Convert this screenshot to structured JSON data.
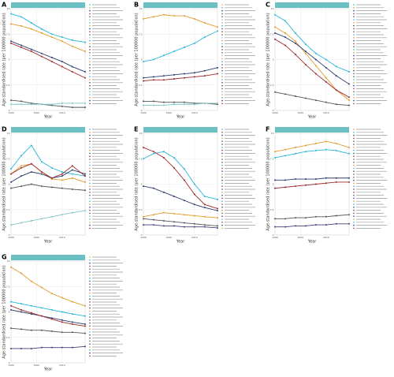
{
  "chart_data": [
    {
      "type": "line",
      "label": "A",
      "x_label": "Year",
      "y_label": "Age-standardised rate (per 100000 population)",
      "x": [
        1990,
        1994,
        1998,
        2002,
        2006,
        2010,
        2014,
        2019
      ],
      "xlim": [
        1990,
        2019
      ],
      "xticks": [
        1990,
        2000,
        2010
      ],
      "ylim": [
        0,
        10
      ],
      "yticks": [
        0,
        2.5,
        5,
        7.5,
        10
      ],
      "grid": true,
      "series": [
        {
          "color": "#29b6d8",
          "values": [
            9.5,
            9.2,
            8.6,
            8.0,
            7.5,
            7.2,
            6.9,
            6.7
          ]
        },
        {
          "color": "#e39b2e",
          "values": [
            8.5,
            8.3,
            8.0,
            7.6,
            7.2,
            6.8,
            6.3,
            5.8
          ]
        },
        {
          "color": "#2c3e6e",
          "values": [
            6.8,
            6.4,
            6.0,
            5.6,
            5.2,
            4.8,
            4.3,
            3.8
          ]
        },
        {
          "color": "#9c2b2b",
          "values": [
            6.6,
            6.2,
            5.8,
            5.3,
            4.8,
            4.3,
            3.8,
            3.2
          ]
        },
        {
          "color": "#555555",
          "values": [
            1.0,
            0.9,
            0.7,
            0.6,
            0.5,
            0.4,
            0.3,
            0.3
          ]
        },
        {
          "color": "#7fc6c6",
          "values": [
            0.6,
            0.6,
            0.6,
            0.6,
            0.6,
            0.7,
            0.7,
            0.7
          ]
        }
      ]
    },
    {
      "type": "line",
      "label": "B",
      "x_label": "Year",
      "y_label": "Age-standardised rate (per 100000 population)",
      "x": [
        1990,
        1994,
        1998,
        2002,
        2006,
        2010,
        2014,
        2019
      ],
      "xlim": [
        1990,
        2019
      ],
      "xticks": [
        1990,
        2000,
        2010
      ],
      "ylim": [
        0,
        10
      ],
      "yticks": [
        0,
        2.5,
        5,
        7.5,
        10
      ],
      "grid": true,
      "series": [
        {
          "color": "#e39b2e",
          "values": [
            9.0,
            9.2,
            9.4,
            9.3,
            9.3,
            9.0,
            8.6,
            8.2
          ]
        },
        {
          "color": "#29b6d8",
          "values": [
            4.8,
            5.0,
            5.4,
            5.8,
            6.2,
            6.6,
            7.2,
            7.8
          ]
        },
        {
          "color": "#2c3e6e",
          "values": [
            3.2,
            3.3,
            3.4,
            3.5,
            3.6,
            3.7,
            3.9,
            4.2
          ]
        },
        {
          "color": "#9c2b2b",
          "values": [
            2.9,
            3.0,
            3.0,
            3.1,
            3.2,
            3.3,
            3.4,
            3.6
          ]
        },
        {
          "color": "#555555",
          "values": [
            0.9,
            0.9,
            0.8,
            0.8,
            0.8,
            0.7,
            0.7,
            0.6
          ]
        },
        {
          "color": "#7fc6c6",
          "values": [
            0.5,
            0.5,
            0.5,
            0.6,
            0.6,
            0.6,
            0.7,
            0.7
          ]
        }
      ]
    },
    {
      "type": "line",
      "label": "C",
      "x_label": "Year",
      "y_label": "Age-standardised rate (per 100000 population)",
      "x": [
        1990,
        1994,
        1998,
        2002,
        2006,
        2010,
        2014,
        2019
      ],
      "xlim": [
        1990,
        2019
      ],
      "xticks": [
        1990,
        2000,
        2010
      ],
      "ylim": [
        0,
        10
      ],
      "yticks": [
        0,
        2.5,
        5,
        7.5,
        10
      ],
      "grid": true,
      "series": [
        {
          "color": "#29b6d8",
          "values": [
            9.4,
            8.8,
            7.6,
            6.5,
            5.6,
            5.0,
            4.3,
            3.8
          ]
        },
        {
          "color": "#e39b2e",
          "values": [
            8.2,
            7.6,
            6.8,
            5.6,
            4.4,
            3.2,
            2.0,
            1.0
          ]
        },
        {
          "color": "#2c3e6e",
          "values": [
            7.6,
            7.2,
            6.6,
            5.8,
            5.0,
            4.2,
            3.4,
            2.6
          ]
        },
        {
          "color": "#9c2b2b",
          "values": [
            7.0,
            6.4,
            5.5,
            4.5,
            3.6,
            2.8,
            2.0,
            1.3
          ]
        },
        {
          "color": "#555555",
          "values": [
            1.8,
            1.6,
            1.4,
            1.2,
            1.0,
            0.8,
            0.6,
            0.5
          ]
        }
      ]
    },
    {
      "type": "line",
      "label": "D",
      "x_label": "Year",
      "y_label": "Age-standardised rate (per 100000 population)",
      "x": [
        1990,
        1994,
        1998,
        2002,
        2006,
        2010,
        2014,
        2019
      ],
      "xlim": [
        1990,
        2019
      ],
      "xticks": [
        1990,
        2000,
        2010
      ],
      "ylim": [
        0,
        10
      ],
      "yticks": [
        0,
        2.5,
        5,
        7.5,
        10
      ],
      "grid": true,
      "series": [
        {
          "color": "#29b6d8",
          "values": [
            6.5,
            7.8,
            8.8,
            7.2,
            6.6,
            6.2,
            6.0,
            5.8
          ]
        },
        {
          "color": "#e39b2e",
          "values": [
            6.0,
            6.8,
            7.0,
            6.2,
            5.5,
            5.4,
            5.6,
            5.2
          ]
        },
        {
          "color": "#2c3e6e",
          "values": [
            5.2,
            5.8,
            6.2,
            6.0,
            5.6,
            5.8,
            6.4,
            6.0
          ]
        },
        {
          "color": "#9c2b2b",
          "values": [
            6.0,
            6.6,
            7.0,
            6.2,
            5.6,
            6.0,
            6.8,
            5.8
          ]
        },
        {
          "color": "#555555",
          "values": [
            4.6,
            4.8,
            5.0,
            4.8,
            4.7,
            4.6,
            4.5,
            4.4
          ]
        },
        {
          "color": "#7fc6c6",
          "values": [
            1.0,
            1.2,
            1.4,
            1.6,
            1.8,
            2.0,
            2.2,
            2.4
          ]
        }
      ]
    },
    {
      "type": "line",
      "label": "E",
      "x_label": "Year",
      "y_label": "Age-standardised rate (per 100000 population)",
      "x": [
        1990,
        1994,
        1998,
        2002,
        2006,
        2010,
        2014,
        2019
      ],
      "xlim": [
        1990,
        2019
      ],
      "xticks": [
        1990,
        2000,
        2010
      ],
      "ylim": [
        0,
        10
      ],
      "yticks": [
        0,
        2.5,
        5,
        7.5,
        10
      ],
      "grid": true,
      "series": [
        {
          "color": "#29b6d8",
          "values": [
            7.5,
            8.0,
            8.2,
            7.6,
            6.5,
            5.0,
            3.8,
            3.5
          ]
        },
        {
          "color": "#9c2b2b",
          "values": [
            8.6,
            8.2,
            7.6,
            6.6,
            5.4,
            4.0,
            3.0,
            2.6
          ]
        },
        {
          "color": "#2c3e6e",
          "values": [
            4.8,
            4.6,
            4.2,
            3.8,
            3.4,
            3.0,
            2.7,
            2.4
          ]
        },
        {
          "color": "#e39b2e",
          "values": [
            1.8,
            2.0,
            2.2,
            2.1,
            2.0,
            1.9,
            1.8,
            1.7
          ]
        },
        {
          "color": "#555555",
          "values": [
            1.6,
            1.5,
            1.4,
            1.3,
            1.2,
            1.1,
            1.0,
            0.9
          ]
        },
        {
          "color": "#4b3a7a",
          "values": [
            1.0,
            1.0,
            0.9,
            0.9,
            0.8,
            0.8,
            0.8,
            0.7
          ]
        }
      ]
    },
    {
      "type": "line",
      "label": "F",
      "x_label": "Year",
      "y_label": "Age-standardised rate (per 100000 population)",
      "x": [
        1990,
        1994,
        1998,
        2002,
        2006,
        2010,
        2014,
        2019
      ],
      "xlim": [
        1990,
        2019
      ],
      "xticks": [
        1990,
        2000,
        2010
      ],
      "ylim": [
        0,
        10
      ],
      "yticks": [
        0,
        2.5,
        5,
        7.5,
        10
      ],
      "grid": true,
      "series": [
        {
          "color": "#e39b2e",
          "values": [
            8.2,
            8.4,
            8.6,
            8.8,
            9.0,
            9.2,
            9.0,
            8.6
          ]
        },
        {
          "color": "#29b6d8",
          "values": [
            7.6,
            7.8,
            8.0,
            8.2,
            8.3,
            8.4,
            8.3,
            8.0
          ]
        },
        {
          "color": "#2c3e6e",
          "values": [
            5.4,
            5.4,
            5.5,
            5.5,
            5.5,
            5.6,
            5.6,
            5.6
          ]
        },
        {
          "color": "#9c2b2b",
          "values": [
            4.6,
            4.7,
            4.8,
            4.9,
            5.0,
            5.1,
            5.2,
            5.2
          ]
        },
        {
          "color": "#555555",
          "values": [
            1.6,
            1.6,
            1.7,
            1.7,
            1.8,
            1.8,
            1.9,
            2.0
          ]
        },
        {
          "color": "#4b3a7a",
          "values": [
            0.8,
            0.8,
            0.9,
            0.9,
            1.0,
            1.0,
            1.1,
            1.1
          ]
        }
      ]
    },
    {
      "type": "line",
      "label": "G",
      "x_label": "Year",
      "y_label": "Age-standardised rate (per 100000 population)",
      "x": [
        1990,
        1994,
        1998,
        2002,
        2006,
        2010,
        2014,
        2019
      ],
      "xlim": [
        1990,
        2019
      ],
      "xticks": [
        1990,
        2000,
        2010
      ],
      "ylim": [
        0,
        10
      ],
      "yticks": [
        0,
        2.5,
        5,
        7.5,
        10
      ],
      "grid": true,
      "series": [
        {
          "color": "#e39b2e",
          "values": [
            9.4,
            8.8,
            8.0,
            7.4,
            6.8,
            6.4,
            6.0,
            5.6
          ]
        },
        {
          "color": "#29b6d8",
          "values": [
            6.0,
            5.8,
            5.6,
            5.4,
            5.2,
            5.0,
            4.8,
            4.6
          ]
        },
        {
          "color": "#2c3e6e",
          "values": [
            5.2,
            5.0,
            4.8,
            4.6,
            4.4,
            4.2,
            4.0,
            3.8
          ]
        },
        {
          "color": "#9c2b2b",
          "values": [
            5.6,
            5.2,
            4.9,
            4.6,
            4.3,
            4.0,
            3.8,
            3.6
          ]
        },
        {
          "color": "#555555",
          "values": [
            3.4,
            3.3,
            3.2,
            3.2,
            3.1,
            3.0,
            3.0,
            2.9
          ]
        },
        {
          "color": "#4b3a7a",
          "values": [
            1.4,
            1.4,
            1.4,
            1.5,
            1.5,
            1.5,
            1.5,
            1.6
          ]
        }
      ]
    }
  ]
}
